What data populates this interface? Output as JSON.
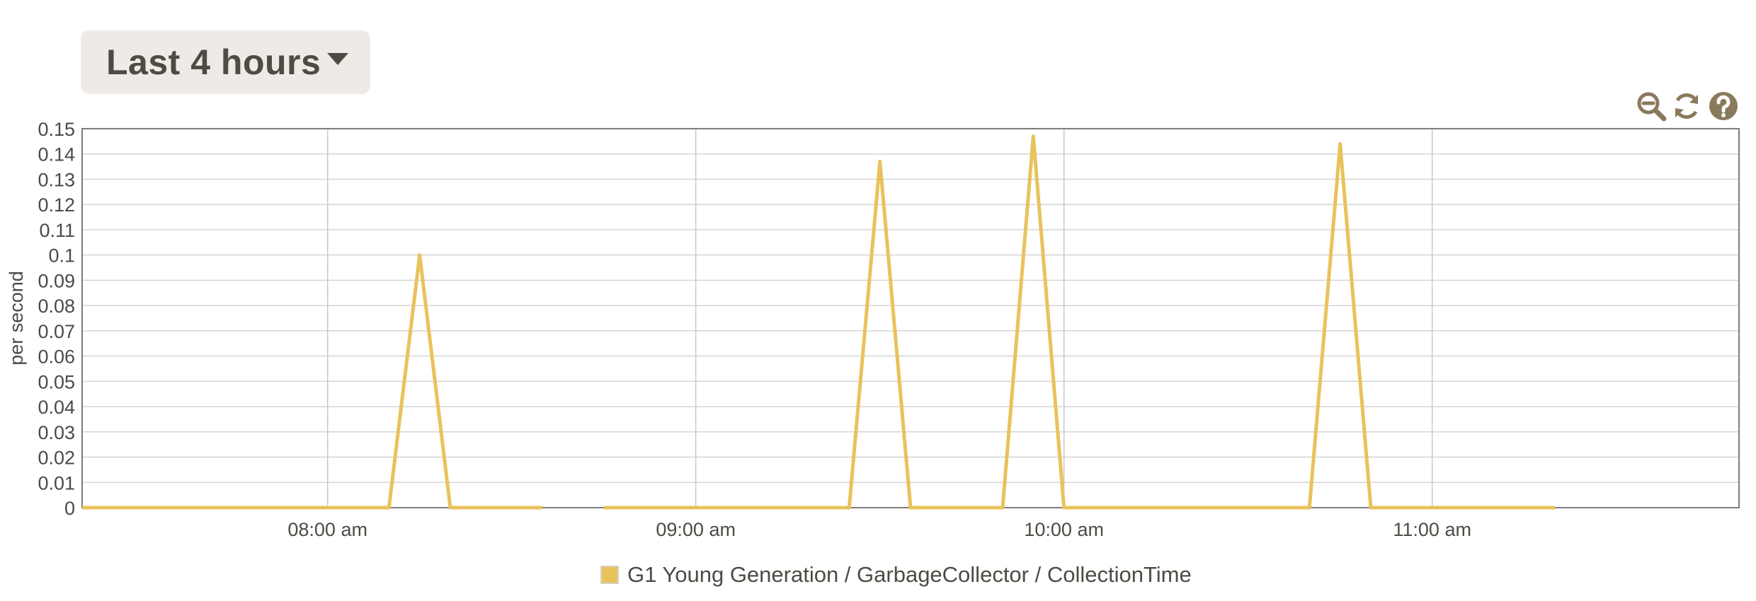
{
  "time_range": {
    "label": "Last 4 hours"
  },
  "toolbar": {
    "icons": [
      "zoom-out-icon",
      "refresh-icon",
      "help-icon"
    ],
    "icon_color": "#8a7a5c"
  },
  "chart_data": {
    "type": "line",
    "ylabel": "per second",
    "xlabel": "",
    "ylim": [
      0,
      0.15
    ],
    "yticks": [
      0,
      0.01,
      0.02,
      0.03,
      0.04,
      0.05,
      0.06,
      0.07,
      0.08,
      0.09,
      0.1,
      0.11,
      0.12,
      0.13,
      0.14,
      0.15
    ],
    "ytick_labels": [
      "0",
      "0.01",
      "0.02",
      "0.03",
      "0.04",
      "0.05",
      "0.06",
      "0.07",
      "0.08",
      "0.09",
      "0.1",
      "0.11",
      "0.12",
      "0.13",
      "0.14",
      "0.15"
    ],
    "xlim": [
      "07:20",
      "11:50"
    ],
    "xticks": [
      "08:00",
      "09:00",
      "10:00",
      "11:00"
    ],
    "xtick_labels": [
      "08:00 am",
      "09:00 am",
      "10:00 am",
      "11:00 am"
    ],
    "grid": true,
    "legend_position": "bottom-center",
    "series": [
      {
        "name": "G1 Young Generation / GarbageCollector / CollectionTime",
        "color": "#e8c35c",
        "segments": [
          [
            [
              "07:20",
              0
            ],
            [
              "08:10",
              0
            ],
            [
              "08:15",
              0.1
            ],
            [
              "08:20",
              0
            ],
            [
              "08:35",
              0
            ]
          ],
          [
            [
              "08:45",
              0
            ],
            [
              "09:25",
              0
            ],
            [
              "09:30",
              0.137
            ],
            [
              "09:35",
              0
            ],
            [
              "09:50",
              0
            ],
            [
              "09:55",
              0.147
            ],
            [
              "10:00",
              0
            ],
            [
              "10:40",
              0
            ],
            [
              "10:45",
              0.144
            ],
            [
              "10:50",
              0
            ],
            [
              "11:20",
              0
            ]
          ]
        ]
      }
    ]
  }
}
